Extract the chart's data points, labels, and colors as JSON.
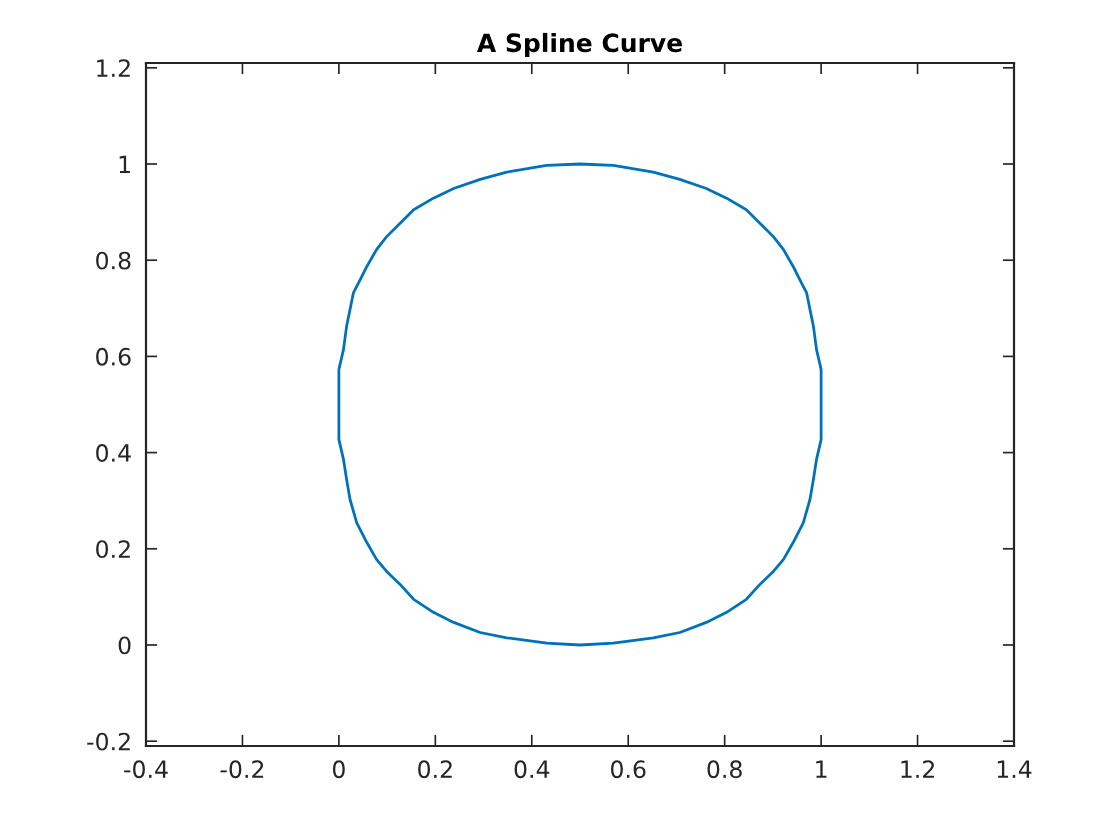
{
  "chart_data": {
    "type": "line",
    "title": "A Spline Curve",
    "series": [
      {
        "color": "#0072bd",
        "x": [
          0,
          0,
          0.0095,
          0.016,
          0.023,
          0.03,
          0.044,
          0.058,
          0.078,
          0.099,
          0.127,
          0.155,
          0.196,
          0.238,
          0.293,
          0.348,
          0.431,
          0.5,
          0.569,
          0.652,
          0.707,
          0.762,
          0.804,
          0.845,
          0.873,
          0.901,
          0.922,
          0.942,
          0.956,
          0.97,
          0.977,
          0.984,
          0.9905,
          1,
          1,
          1,
          0.9905,
          0.984,
          0.977,
          0.963,
          0.942,
          0.922,
          0.901,
          0.873,
          0.845,
          0.804,
          0.762,
          0.707,
          0.652,
          0.569,
          0.5,
          0.431,
          0.348,
          0.293,
          0.238,
          0.196,
          0.155,
          0.127,
          0.099,
          0.078,
          0.058,
          0.037,
          0.023,
          0.016,
          0.0095,
          0,
          0
        ],
        "values": [
          0.5,
          0.573,
          0.614,
          0.663,
          0.697,
          0.732,
          0.759,
          0.787,
          0.822,
          0.849,
          0.877,
          0.905,
          0.929,
          0.949,
          0.968,
          0.983,
          0.997,
          1,
          0.997,
          0.983,
          0.968,
          0.949,
          0.929,
          0.905,
          0.877,
          0.849,
          0.822,
          0.787,
          0.759,
          0.732,
          0.697,
          0.663,
          0.614,
          0.573,
          0.5,
          0.427,
          0.386,
          0.344,
          0.303,
          0.254,
          0.213,
          0.178,
          0.153,
          0.126,
          0.095,
          0.068,
          0.047,
          0.026,
          0.015,
          0.004,
          0,
          0.004,
          0.015,
          0.026,
          0.047,
          0.068,
          0.095,
          0.126,
          0.153,
          0.178,
          0.213,
          0.254,
          0.303,
          0.344,
          0.386,
          0.427,
          0.573
        ]
      }
    ],
    "xlim": [
      -0.4,
      1.4
    ],
    "ylim": [
      -0.21,
      1.21
    ],
    "xticks": [
      -0.4,
      -0.2,
      0,
      0.2,
      0.4,
      0.6,
      0.8,
      1,
      1.2,
      1.4
    ],
    "yticks": [
      -0.2,
      0,
      0.2,
      0.4,
      0.6,
      0.8,
      1,
      1.2
    ],
    "line_style": "solid"
  }
}
